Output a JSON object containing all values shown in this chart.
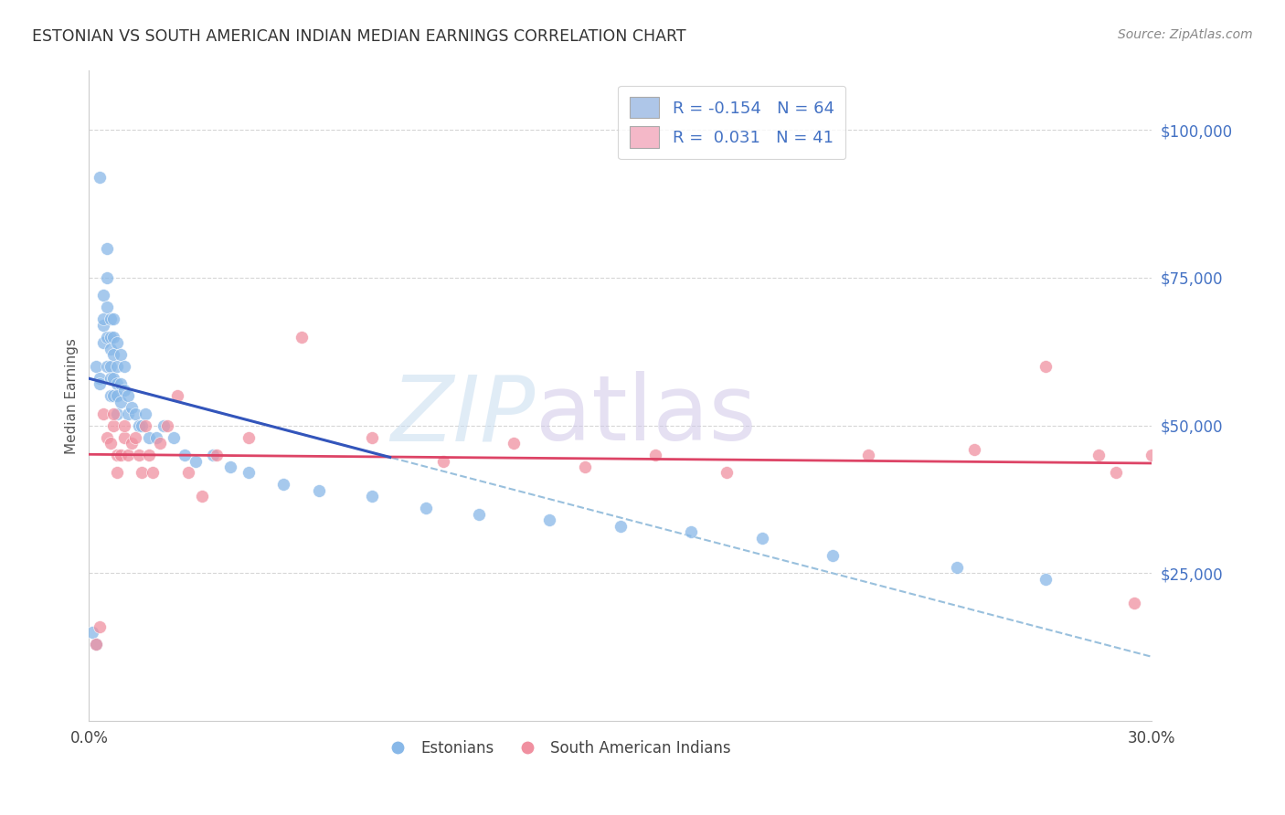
{
  "title": "ESTONIAN VS SOUTH AMERICAN INDIAN MEDIAN EARNINGS CORRELATION CHART",
  "source": "Source: ZipAtlas.com",
  "ylabel": "Median Earnings",
  "ytick_labels": [
    "$25,000",
    "$50,000",
    "$75,000",
    "$100,000"
  ],
  "ytick_values": [
    25000,
    50000,
    75000,
    100000
  ],
  "legend_entries": [
    {
      "label": "R = -0.154   N = 64",
      "facecolor": "#aec6e8"
    },
    {
      "label": "R =  0.031   N = 41",
      "facecolor": "#f4b8c8"
    }
  ],
  "legend_bottom": [
    "Estonians",
    "South American Indians"
  ],
  "watermark_zip": "ZIP",
  "watermark_atlas": "atlas",
  "estonian_color": "#88b8e8",
  "south_american_color": "#f090a0",
  "estonian_line_color": "#3355bb",
  "south_american_line_color": "#dd4466",
  "dashed_line_color": "#99c0dd",
  "xlim": [
    0.0,
    0.3
  ],
  "ylim": [
    0,
    110000
  ],
  "background_color": "#ffffff",
  "grid_color": "#cccccc",
  "title_color": "#333333",
  "estonian_x": [
    0.001,
    0.002,
    0.002,
    0.003,
    0.003,
    0.003,
    0.004,
    0.004,
    0.004,
    0.004,
    0.005,
    0.005,
    0.005,
    0.005,
    0.005,
    0.006,
    0.006,
    0.006,
    0.006,
    0.006,
    0.006,
    0.007,
    0.007,
    0.007,
    0.007,
    0.007,
    0.008,
    0.008,
    0.008,
    0.008,
    0.008,
    0.009,
    0.009,
    0.009,
    0.01,
    0.01,
    0.011,
    0.011,
    0.012,
    0.013,
    0.014,
    0.015,
    0.016,
    0.017,
    0.019,
    0.021,
    0.024,
    0.027,
    0.03,
    0.035,
    0.04,
    0.045,
    0.055,
    0.065,
    0.08,
    0.095,
    0.11,
    0.13,
    0.15,
    0.17,
    0.19,
    0.21,
    0.245,
    0.27
  ],
  "estonian_y": [
    15000,
    13000,
    60000,
    92000,
    58000,
    57000,
    67000,
    64000,
    72000,
    68000,
    80000,
    75000,
    70000,
    65000,
    60000,
    68000,
    65000,
    63000,
    60000,
    58000,
    55000,
    68000,
    65000,
    62000,
    58000,
    55000,
    64000,
    60000,
    57000,
    55000,
    52000,
    62000,
    57000,
    54000,
    60000,
    56000,
    55000,
    52000,
    53000,
    52000,
    50000,
    50000,
    52000,
    48000,
    48000,
    50000,
    48000,
    45000,
    44000,
    45000,
    43000,
    42000,
    40000,
    39000,
    38000,
    36000,
    35000,
    34000,
    33000,
    32000,
    31000,
    28000,
    26000,
    24000
  ],
  "south_american_x": [
    0.002,
    0.003,
    0.004,
    0.005,
    0.006,
    0.007,
    0.007,
    0.008,
    0.008,
    0.009,
    0.01,
    0.01,
    0.011,
    0.012,
    0.013,
    0.014,
    0.015,
    0.016,
    0.017,
    0.018,
    0.02,
    0.022,
    0.025,
    0.028,
    0.032,
    0.036,
    0.045,
    0.06,
    0.08,
    0.1,
    0.12,
    0.14,
    0.16,
    0.18,
    0.22,
    0.25,
    0.27,
    0.285,
    0.29,
    0.295,
    0.3
  ],
  "south_american_y": [
    13000,
    16000,
    52000,
    48000,
    47000,
    50000,
    52000,
    45000,
    42000,
    45000,
    48000,
    50000,
    45000,
    47000,
    48000,
    45000,
    42000,
    50000,
    45000,
    42000,
    47000,
    50000,
    55000,
    42000,
    38000,
    45000,
    48000,
    65000,
    48000,
    44000,
    47000,
    43000,
    45000,
    42000,
    45000,
    46000,
    60000,
    45000,
    42000,
    20000,
    45000
  ]
}
